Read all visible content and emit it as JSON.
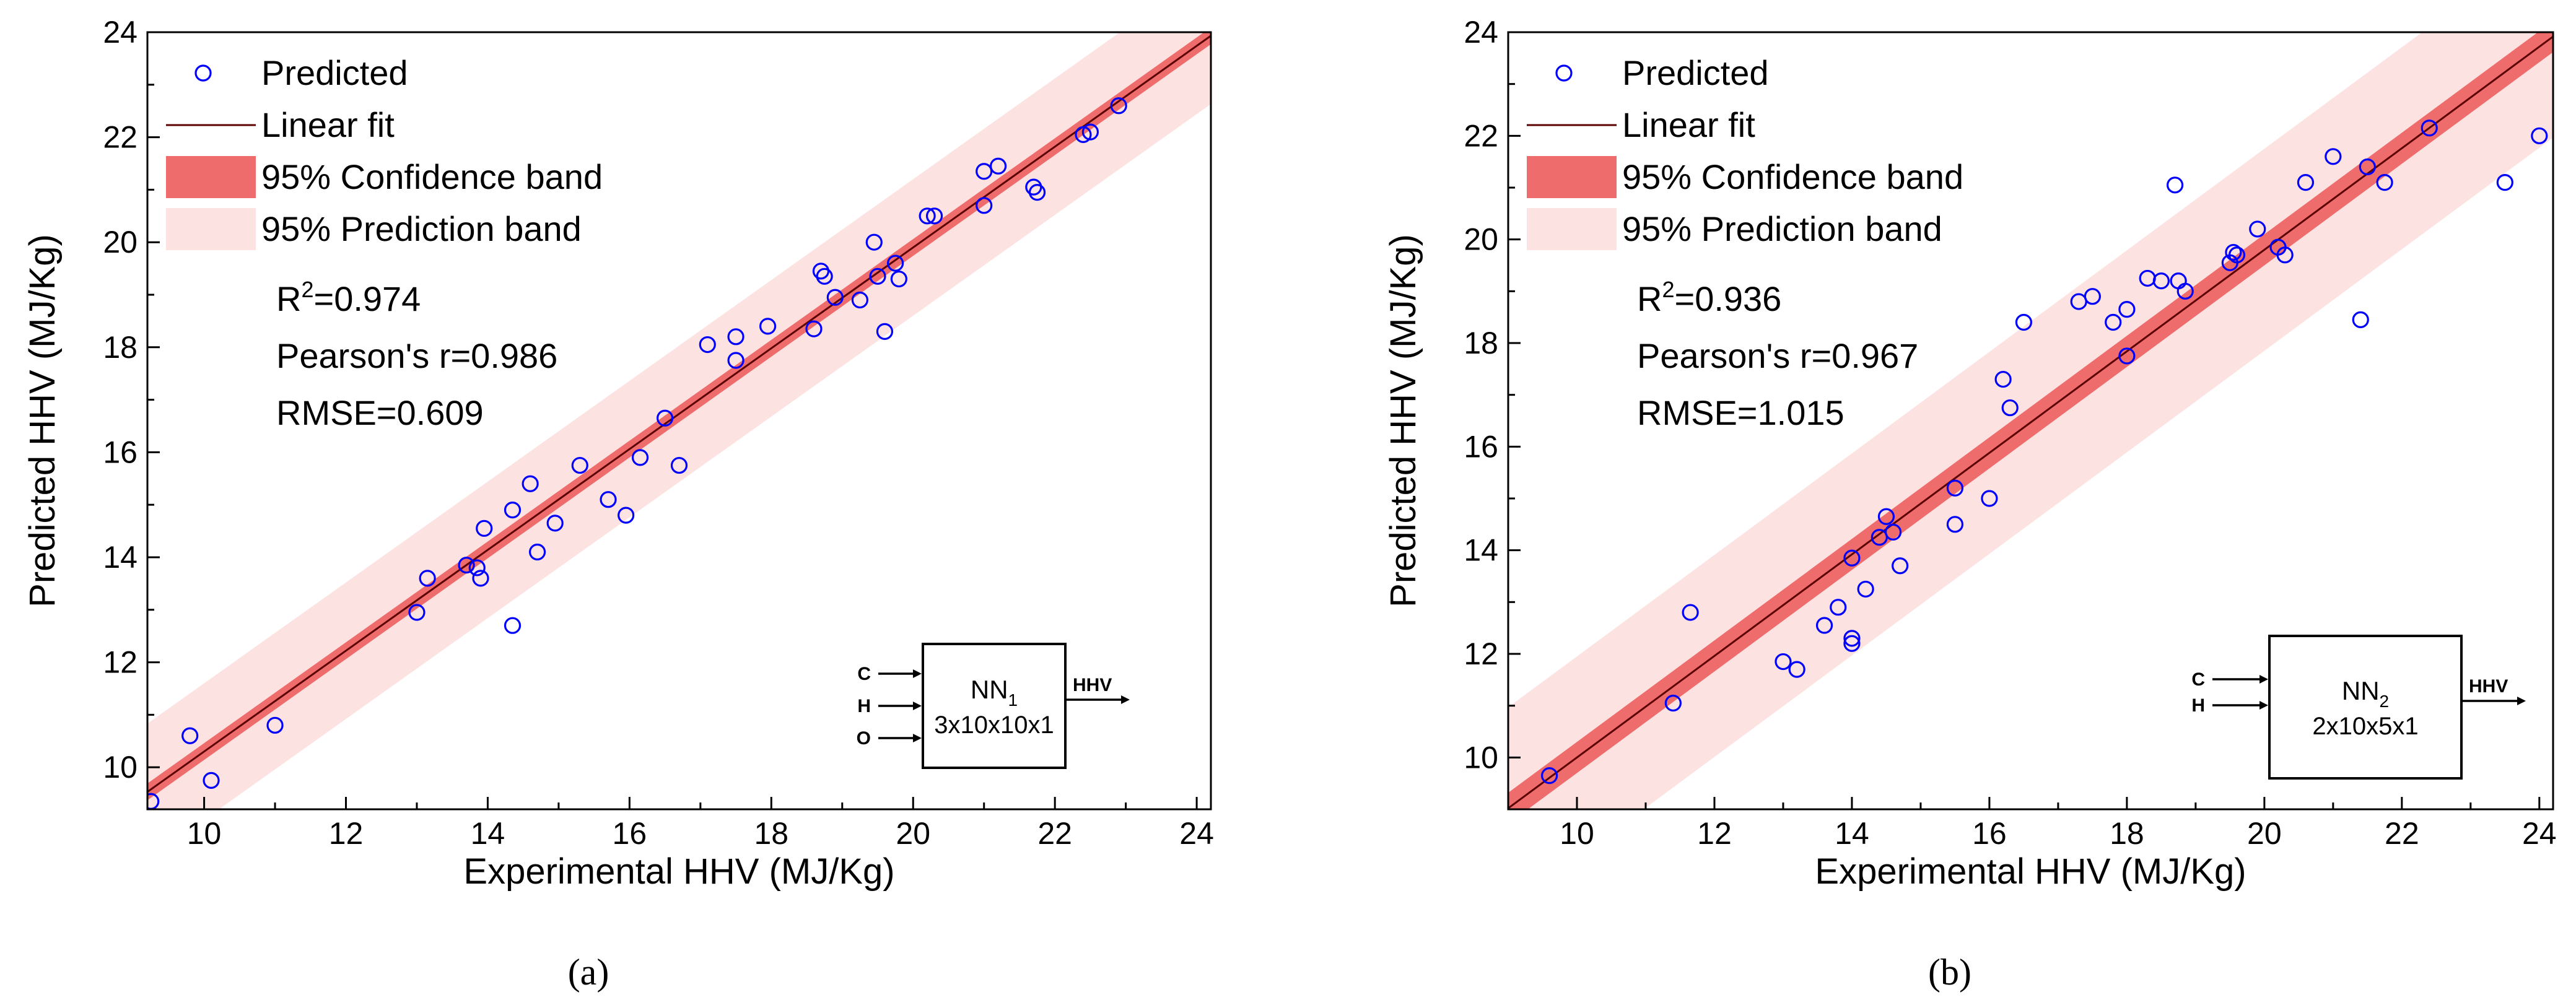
{
  "colors": {
    "marker": "#0000ff",
    "fit": "#5a0000",
    "confidence_band": "#ef6c6c",
    "prediction_band": "#fde2e2",
    "axis": "#000000"
  },
  "chart_data": [
    {
      "type": "scatter",
      "panel_label": "(a)",
      "xlabel": "Experimental HHV (MJ/Kg)",
      "ylabel": "Predicted HHV (MJ/Kg)",
      "xlim": [
        9.2,
        24.2
      ],
      "ylim": [
        9.2,
        24.0
      ],
      "xticks": [
        10,
        12,
        14,
        16,
        18,
        20,
        22,
        24
      ],
      "yticks": [
        10,
        12,
        14,
        16,
        18,
        20,
        22,
        24
      ],
      "legend": {
        "position": "top-left",
        "entries": [
          "Predicted",
          "Linear fit",
          "95% Confidence band",
          "95% Prediction band"
        ]
      },
      "stats": {
        "r2_prefix": "R",
        "r2_sup": "2",
        "r2_value": "=0.974",
        "pearson": "Pearson's r=0.986",
        "rmse": "RMSE=0.609"
      },
      "fit": {
        "slope": 0.96,
        "intercept": 0.7,
        "conf_half_width": 0.16,
        "pred_half_width": 1.3
      },
      "network": {
        "name": "NN",
        "sub": "1",
        "arch": "3x10x10x1",
        "inputs": [
          "C",
          "H",
          "O"
        ],
        "output": "HHV"
      },
      "points": [
        [
          9.25,
          9.35
        ],
        [
          9.8,
          10.6
        ],
        [
          10.1,
          9.75
        ],
        [
          11.0,
          10.8
        ],
        [
          13.0,
          12.95
        ],
        [
          13.15,
          13.6
        ],
        [
          13.7,
          13.85
        ],
        [
          13.85,
          13.8
        ],
        [
          13.9,
          13.6
        ],
        [
          13.95,
          14.55
        ],
        [
          14.35,
          14.9
        ],
        [
          14.35,
          12.7
        ],
        [
          14.6,
          15.4
        ],
        [
          14.7,
          14.1
        ],
        [
          14.95,
          14.65
        ],
        [
          15.3,
          15.75
        ],
        [
          15.7,
          15.1
        ],
        [
          15.95,
          14.8
        ],
        [
          16.15,
          15.9
        ],
        [
          16.5,
          16.65
        ],
        [
          16.7,
          15.75
        ],
        [
          17.1,
          18.05
        ],
        [
          17.5,
          18.2
        ],
        [
          17.5,
          17.75
        ],
        [
          17.95,
          18.4
        ],
        [
          18.6,
          18.35
        ],
        [
          18.7,
          19.45
        ],
        [
          18.75,
          19.35
        ],
        [
          18.9,
          18.95
        ],
        [
          19.25,
          18.9
        ],
        [
          19.45,
          20.0
        ],
        [
          19.5,
          19.35
        ],
        [
          19.6,
          18.3
        ],
        [
          19.75,
          19.6
        ],
        [
          19.8,
          19.3
        ],
        [
          20.2,
          20.5
        ],
        [
          20.3,
          20.5
        ],
        [
          21.0,
          21.35
        ],
        [
          21.0,
          20.7
        ],
        [
          21.2,
          21.45
        ],
        [
          21.7,
          21.05
        ],
        [
          21.75,
          20.95
        ],
        [
          22.4,
          22.05
        ],
        [
          22.5,
          22.1
        ],
        [
          22.9,
          22.6
        ]
      ]
    },
    {
      "type": "scatter",
      "panel_label": "(b)",
      "xlabel": "Experimental HHV (MJ/Kg)",
      "ylabel": "Predicted HHV (MJ/Kg)",
      "xlim": [
        9.0,
        24.2
      ],
      "ylim": [
        9.0,
        24.0
      ],
      "xticks": [
        10,
        12,
        14,
        16,
        18,
        20,
        22,
        24
      ],
      "yticks": [
        10,
        12,
        14,
        16,
        18,
        20,
        22,
        24
      ],
      "legend": {
        "position": "top-left",
        "entries": [
          "Predicted",
          "Linear fit",
          "95% Confidence band",
          "95% Prediction band"
        ]
      },
      "stats": {
        "r2_prefix": "R",
        "r2_sup": "2",
        "r2_value": "=0.936",
        "pearson": "Pearson's r=0.967",
        "rmse": "RMSE=1.015"
      },
      "fit": {
        "slope": 0.98,
        "intercept": 0.2,
        "conf_half_width": 0.3,
        "pred_half_width": 1.95
      },
      "network": {
        "name": "NN",
        "sub": "2",
        "arch": "2x10x5x1",
        "inputs": [
          "C",
          "H"
        ],
        "output": "HHV"
      },
      "points": [
        [
          9.6,
          9.65
        ],
        [
          11.4,
          11.05
        ],
        [
          11.65,
          12.8
        ],
        [
          13.0,
          11.85
        ],
        [
          13.2,
          11.7
        ],
        [
          13.6,
          12.55
        ],
        [
          13.8,
          12.9
        ],
        [
          14.0,
          13.85
        ],
        [
          14.0,
          12.3
        ],
        [
          14.0,
          12.2
        ],
        [
          14.2,
          13.25
        ],
        [
          14.4,
          14.25
        ],
        [
          14.5,
          14.65
        ],
        [
          14.6,
          14.35
        ],
        [
          14.7,
          13.7
        ],
        [
          15.5,
          15.2
        ],
        [
          15.5,
          14.5
        ],
        [
          16.0,
          15.0
        ],
        [
          16.2,
          17.3
        ],
        [
          16.3,
          16.75
        ],
        [
          16.5,
          18.4
        ],
        [
          17.3,
          18.8
        ],
        [
          17.5,
          18.9
        ],
        [
          17.8,
          18.4
        ],
        [
          18.0,
          18.65
        ],
        [
          18.0,
          17.75
        ],
        [
          18.3,
          19.25
        ],
        [
          18.5,
          19.2
        ],
        [
          18.7,
          21.05
        ],
        [
          18.75,
          19.2
        ],
        [
          18.85,
          19.0
        ],
        [
          19.5,
          19.55
        ],
        [
          19.55,
          19.75
        ],
        [
          19.6,
          19.7
        ],
        [
          19.9,
          20.2
        ],
        [
          20.2,
          19.85
        ],
        [
          20.3,
          19.7
        ],
        [
          20.6,
          21.1
        ],
        [
          21.0,
          21.6
        ],
        [
          21.4,
          18.45
        ],
        [
          21.5,
          21.4
        ],
        [
          21.75,
          21.1
        ],
        [
          22.4,
          22.15
        ],
        [
          23.5,
          21.1
        ],
        [
          24.0,
          22.0
        ]
      ]
    }
  ]
}
